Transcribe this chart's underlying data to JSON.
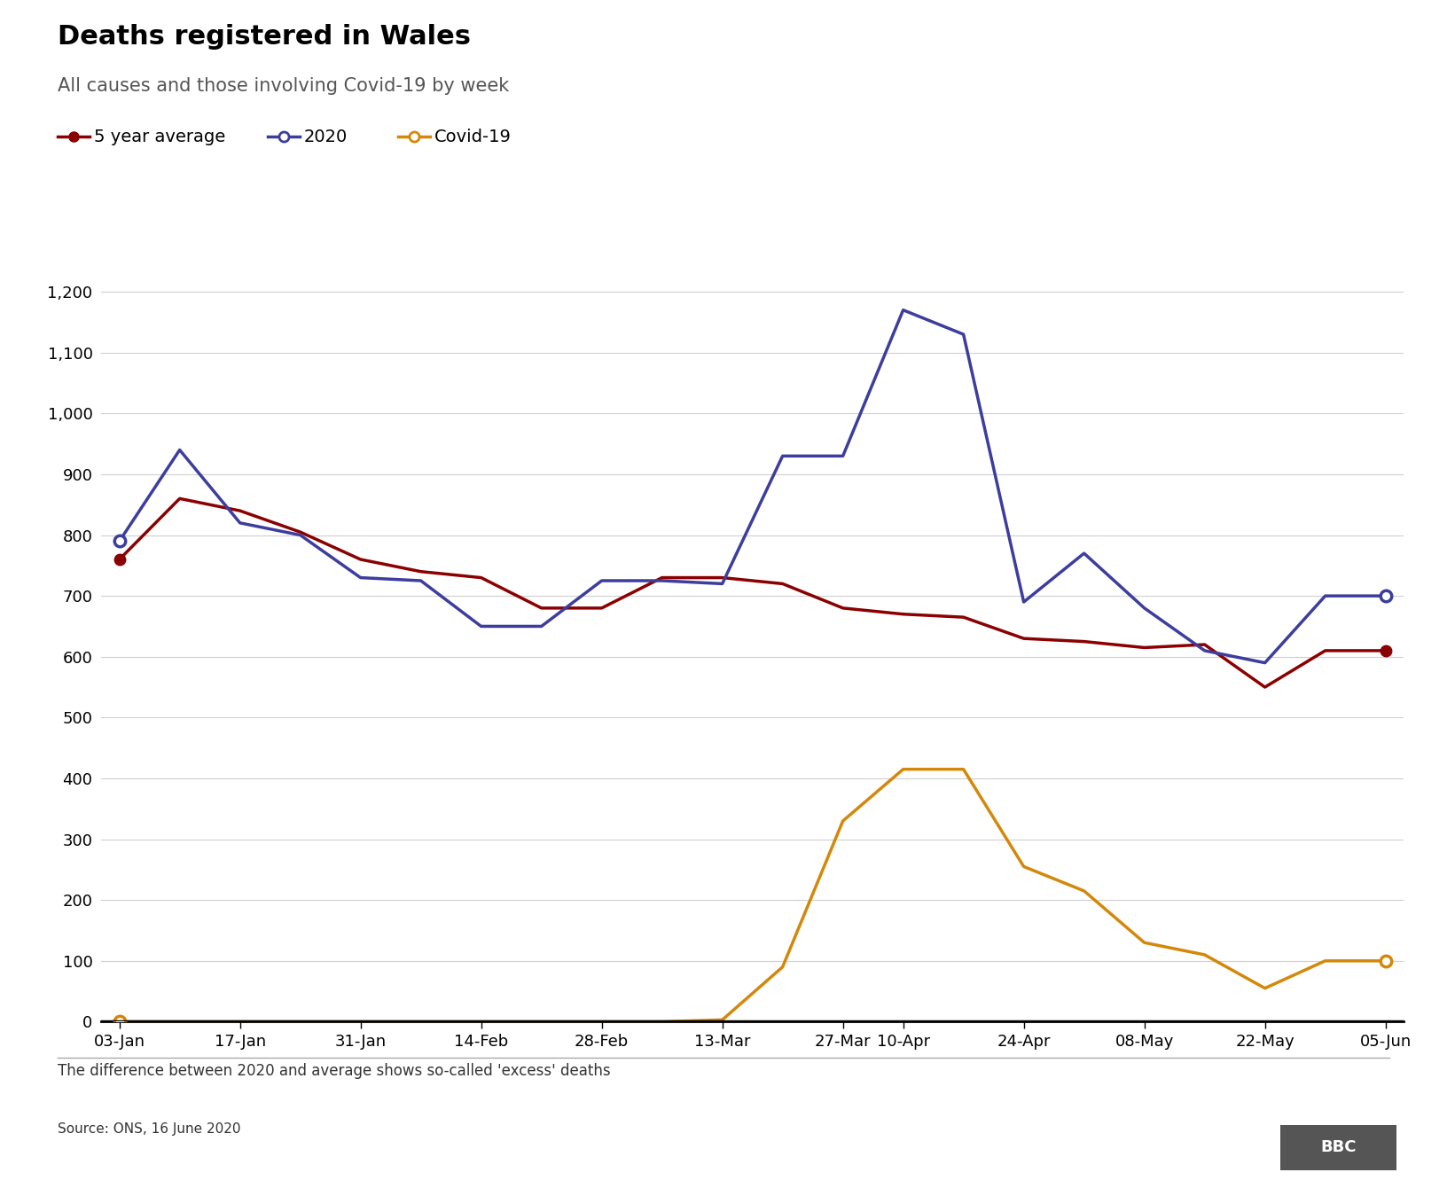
{
  "title": "Deaths registered in Wales",
  "subtitle": "All causes and those involving Covid-19 by week",
  "footnote": "The difference between 2020 and average shows so-called 'excess' deaths",
  "source": "Source: ONS, 16 June 2020",
  "x_labels": [
    "03-Jan",
    "17-Jan",
    "31-Jan",
    "14-Feb",
    "28-Feb",
    "13-Mar",
    "27-Mar",
    "10-Apr",
    "24-Apr",
    "08-May",
    "22-May",
    "05-Jun"
  ],
  "avg_x": [
    0,
    1,
    2,
    3,
    4,
    5,
    6,
    7,
    8,
    9,
    10,
    11,
    12,
    13,
    14,
    15,
    16,
    17,
    18,
    19,
    20,
    21
  ],
  "avg_y": [
    760,
    860,
    840,
    805,
    760,
    740,
    730,
    680,
    680,
    730,
    730,
    720,
    680,
    670,
    665,
    630,
    625,
    615,
    620,
    550,
    610,
    610
  ],
  "yr2020_x": [
    0,
    1,
    2,
    3,
    4,
    5,
    6,
    7,
    8,
    9,
    10,
    11,
    12,
    13,
    14,
    15,
    16,
    17,
    18,
    19,
    20,
    21
  ],
  "yr2020_y": [
    790,
    940,
    820,
    800,
    730,
    725,
    650,
    650,
    725,
    725,
    720,
    930,
    930,
    1170,
    1130,
    690,
    770,
    680,
    610,
    590,
    700,
    700
  ],
  "covid_x": [
    0,
    1,
    2,
    3,
    4,
    5,
    6,
    7,
    8,
    9,
    10,
    11,
    12,
    13,
    14,
    15,
    16,
    17,
    18,
    19,
    20,
    21
  ],
  "covid_y": [
    0,
    0,
    0,
    0,
    0,
    0,
    0,
    0,
    0,
    0,
    3,
    90,
    330,
    415,
    415,
    255,
    215,
    130,
    110,
    55,
    100,
    100
  ],
  "color_avg": "#8B0000",
  "color_2020": "#3d3d9e",
  "color_covid": "#d4880a",
  "ylim": [
    0,
    1250
  ],
  "yticks": [
    0,
    100,
    200,
    300,
    400,
    500,
    600,
    700,
    800,
    900,
    1000,
    1100,
    1200
  ],
  "title_fontsize": 22,
  "subtitle_fontsize": 15,
  "axis_fontsize": 13,
  "legend_fontsize": 14
}
